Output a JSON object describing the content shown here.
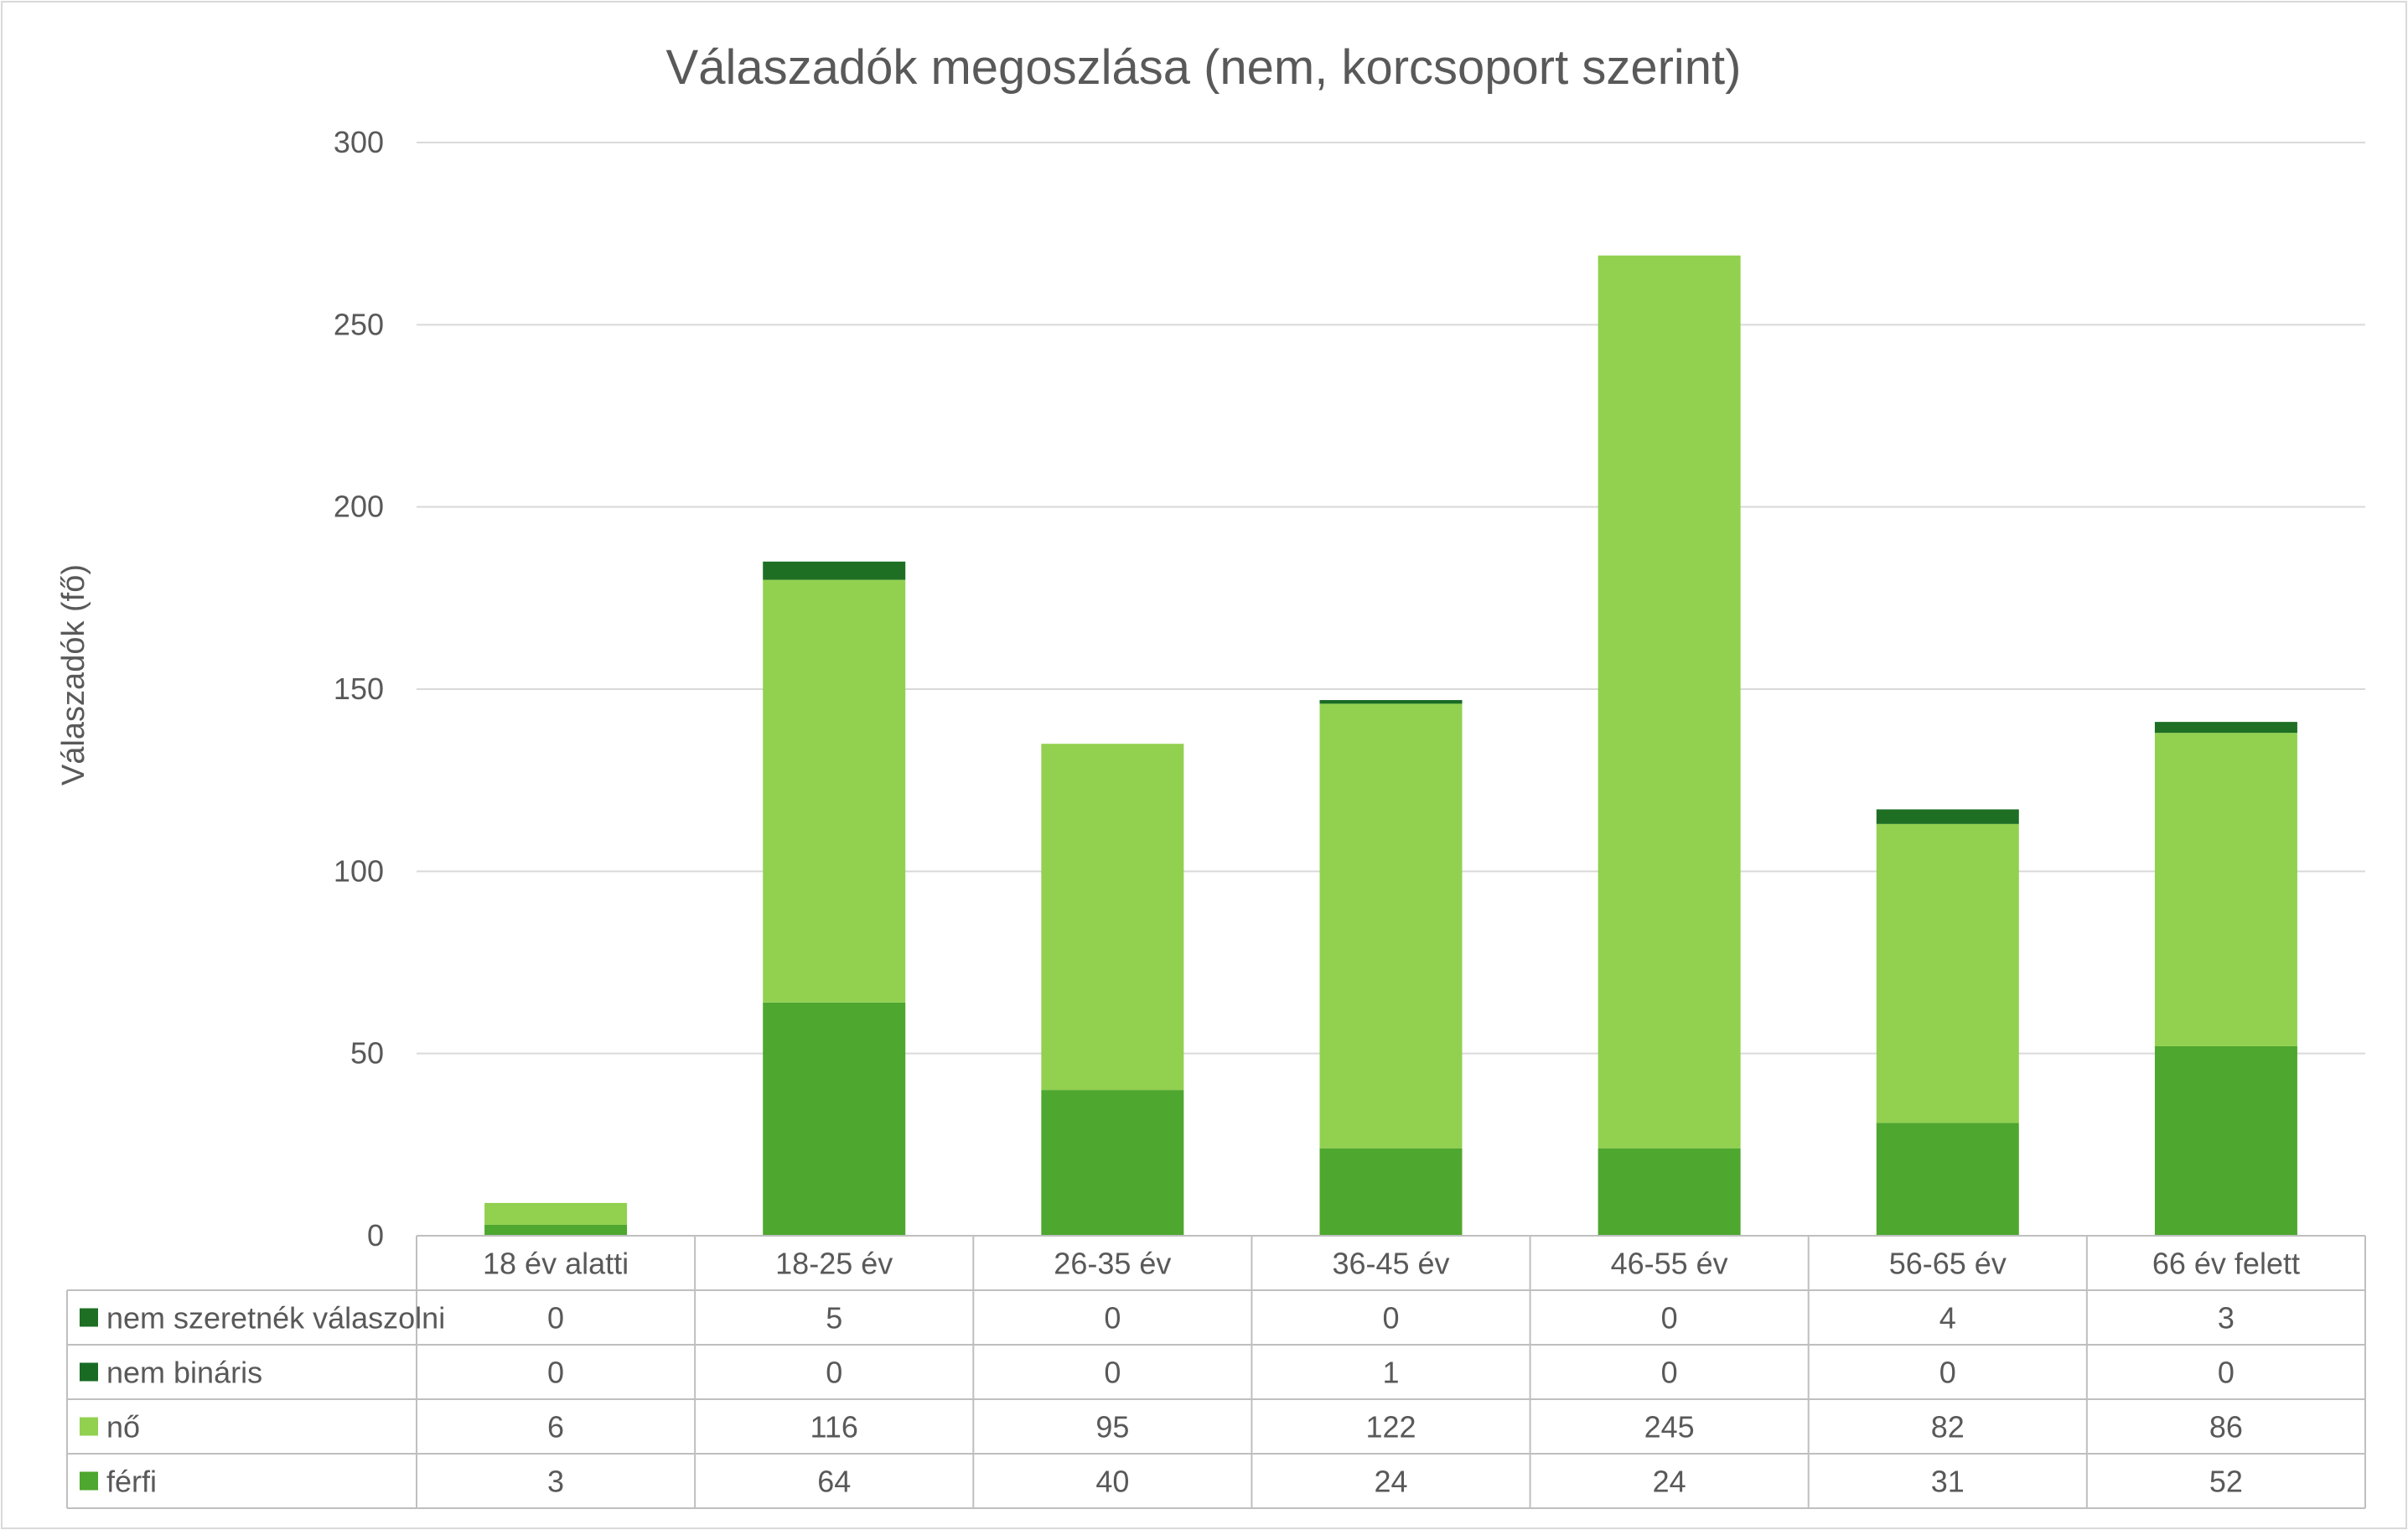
{
  "chart_data": {
    "type": "bar",
    "stacked": true,
    "title": "Válaszadók megoszlása (nem, korcsoport szerint)",
    "ylabel": "Válaszadók (fő)",
    "xlabel": "",
    "ylim": [
      0,
      300
    ],
    "yticks": [
      0,
      50,
      100,
      150,
      200,
      250,
      300
    ],
    "grid": true,
    "legend": "data-table",
    "categories": [
      "18 év alatti",
      "18-25 év",
      "26-35 év",
      "36-45 év",
      "46-55 év",
      "56-65 év",
      "66 év felett"
    ],
    "series": [
      {
        "name": "férfi",
        "color": "#4ea72e",
        "values": [
          3,
          64,
          40,
          24,
          24,
          31,
          52
        ]
      },
      {
        "name": "nő",
        "color": "#92d050",
        "values": [
          6,
          116,
          95,
          122,
          245,
          82,
          86
        ]
      },
      {
        "name": "nem bináris",
        "color": "#196b24",
        "values": [
          0,
          0,
          0,
          1,
          0,
          0,
          0
        ]
      },
      {
        "name": "nem szeretnék válaszolni",
        "color": "#1e6f24",
        "values": [
          0,
          5,
          0,
          0,
          0,
          4,
          3
        ]
      }
    ],
    "table_rows": [
      "nem szeretnék válaszolni",
      "nem bináris",
      "nő",
      "férfi"
    ],
    "colors": {
      "grid": "#d9d9d9",
      "text": "#595959",
      "border": "#bfbfbf"
    }
  }
}
